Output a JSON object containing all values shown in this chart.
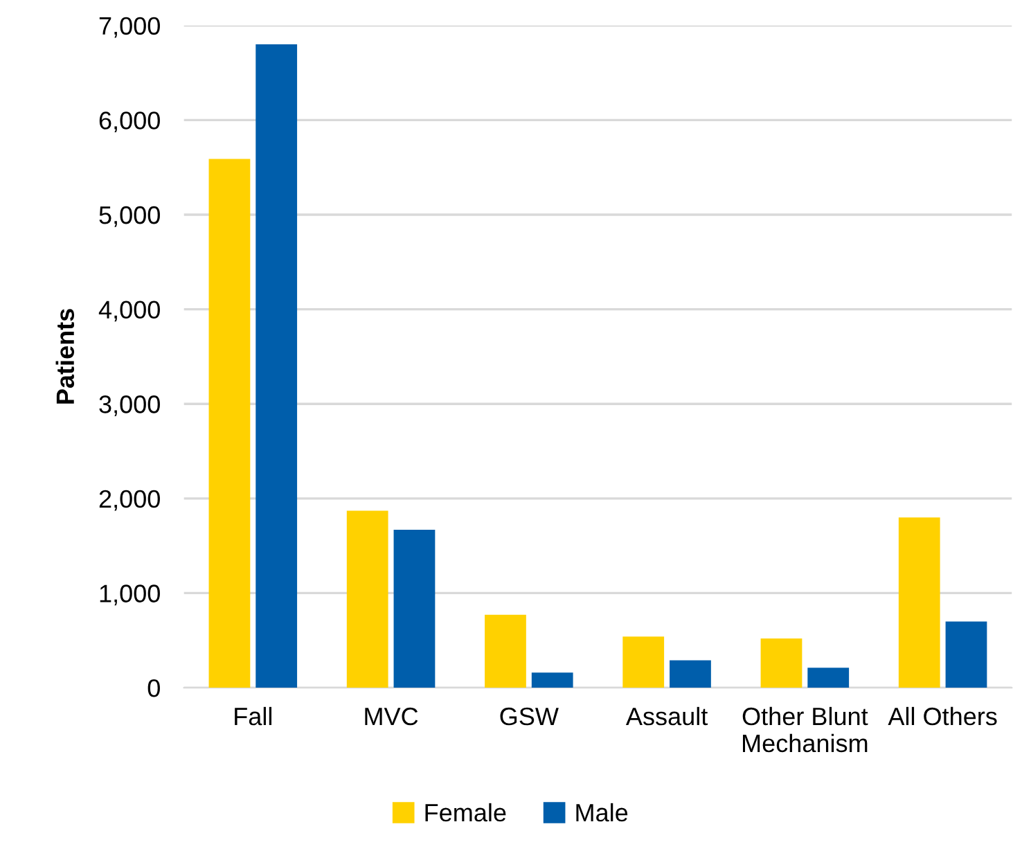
{
  "chart_data": {
    "type": "bar",
    "ylabel": "Patients",
    "categories": [
      "Fall",
      "MVC",
      "GSW",
      "Assault",
      "Other Blunt\nMechanism",
      "All Others"
    ],
    "series": [
      {
        "name": "Female",
        "color": "#ffd100",
        "values": [
          5590,
          1870,
          770,
          540,
          520,
          1800
        ]
      },
      {
        "name": "Male",
        "color": "#005eab",
        "values": [
          6800,
          1670,
          160,
          290,
          210,
          700
        ]
      }
    ],
    "ylim": [
      0,
      7000
    ],
    "yticks": [
      {
        "value": 0,
        "label": "0"
      },
      {
        "value": 1000,
        "label": "1,000"
      },
      {
        "value": 2000,
        "label": "2,000"
      },
      {
        "value": 3000,
        "label": "3,000"
      },
      {
        "value": 4000,
        "label": "4,000"
      },
      {
        "value": 5000,
        "label": "5,000"
      },
      {
        "value": 6000,
        "label": "6,000"
      },
      {
        "value": 7000,
        "label": "7,000"
      }
    ],
    "grid": "y",
    "legend": "bottom"
  }
}
